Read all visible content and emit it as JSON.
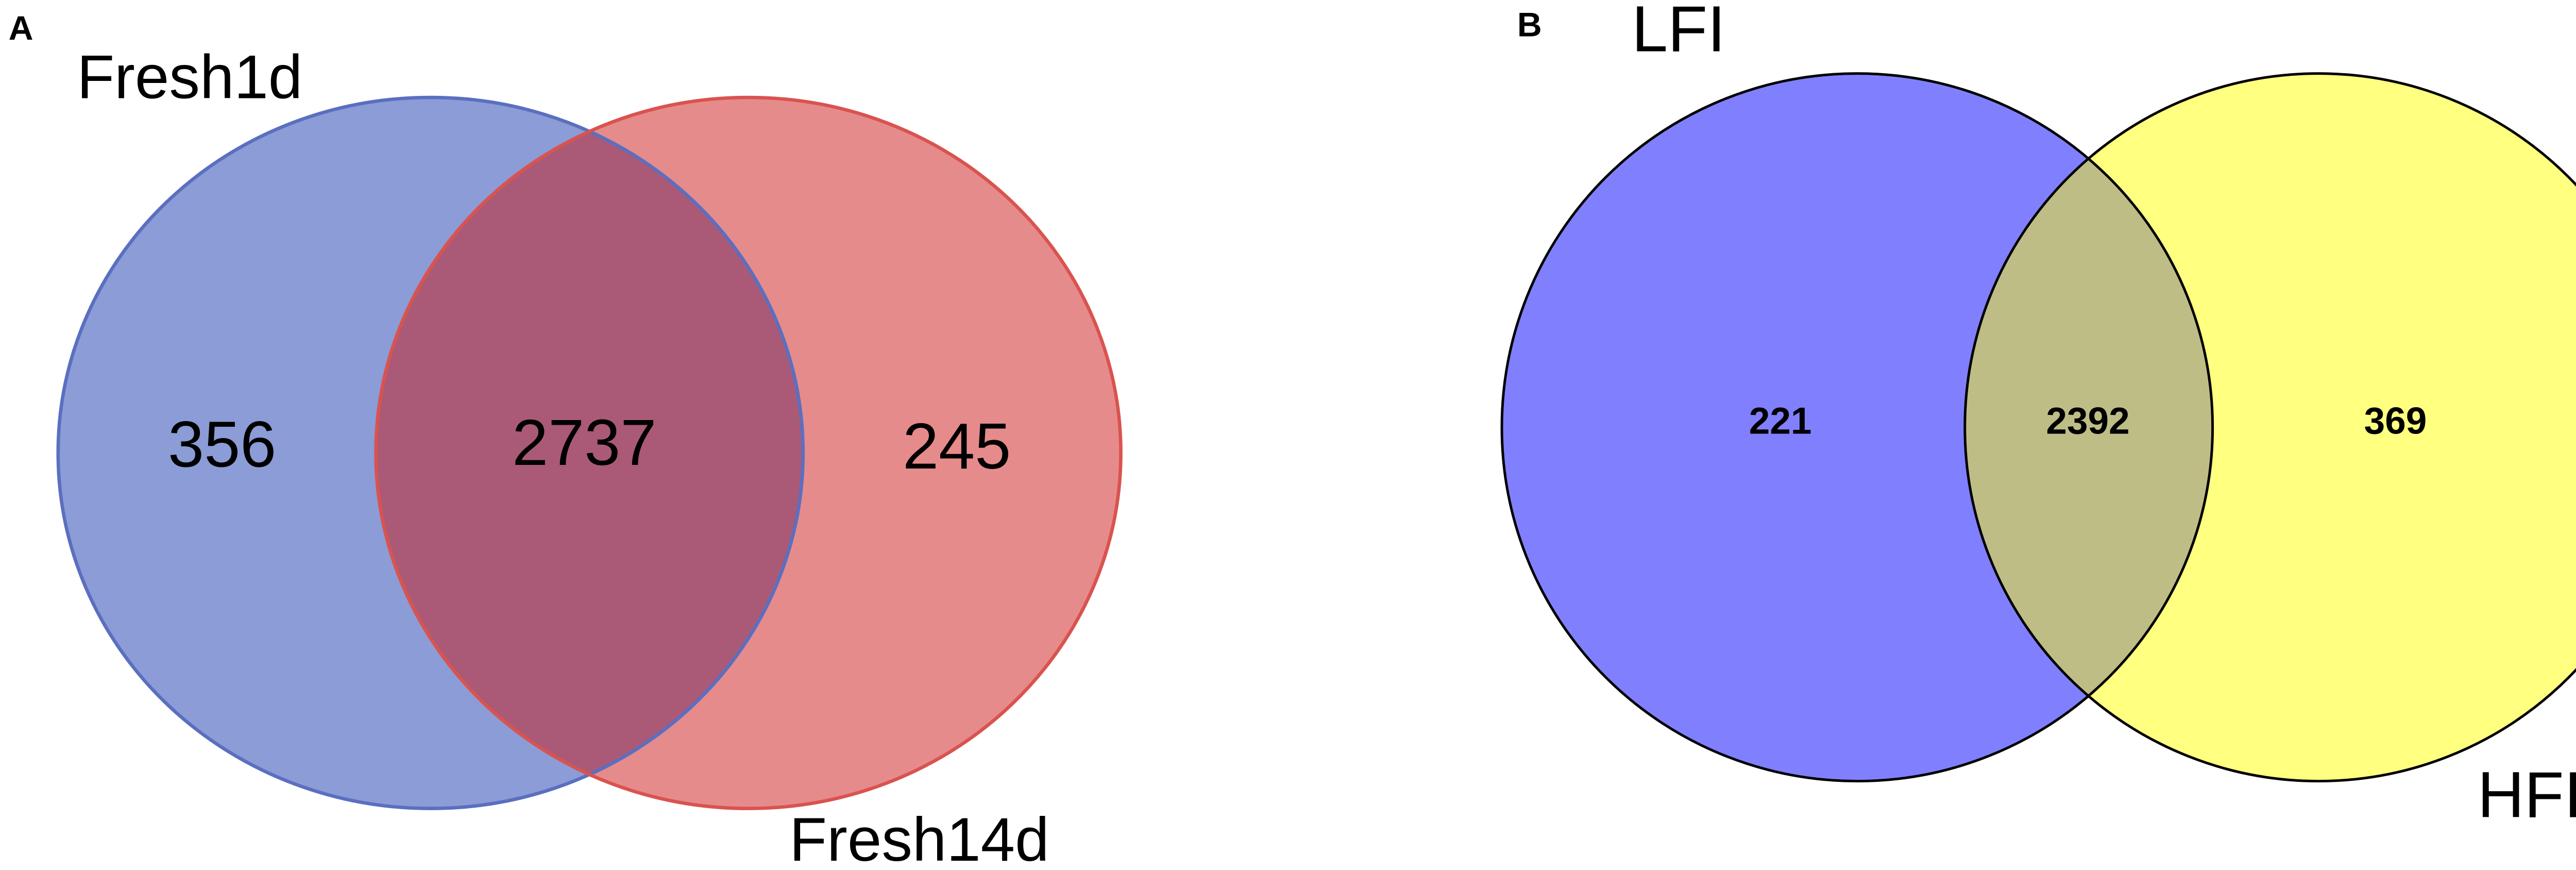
{
  "chart_data": [
    {
      "type": "venn",
      "panel": "A",
      "series": [
        {
          "name": "Fresh1d",
          "color": "#8b9cd6",
          "stroke": "#5b6fc0"
        },
        {
          "name": "Fresh14d",
          "color": "#e68b8b",
          "stroke": "#d9534f"
        }
      ],
      "overlap_color": "#aa5a76",
      "values": [
        356,
        2737,
        245
      ]
    },
    {
      "type": "venn",
      "panel": "B",
      "series": [
        {
          "name": "LFI",
          "color": "#8080ff",
          "stroke": "#000000"
        },
        {
          "name": "HFI",
          "color": "#ffff80",
          "stroke": "#000000"
        }
      ],
      "overlap_color": "#bfbd86",
      "values": [
        221,
        2392,
        369
      ]
    }
  ]
}
